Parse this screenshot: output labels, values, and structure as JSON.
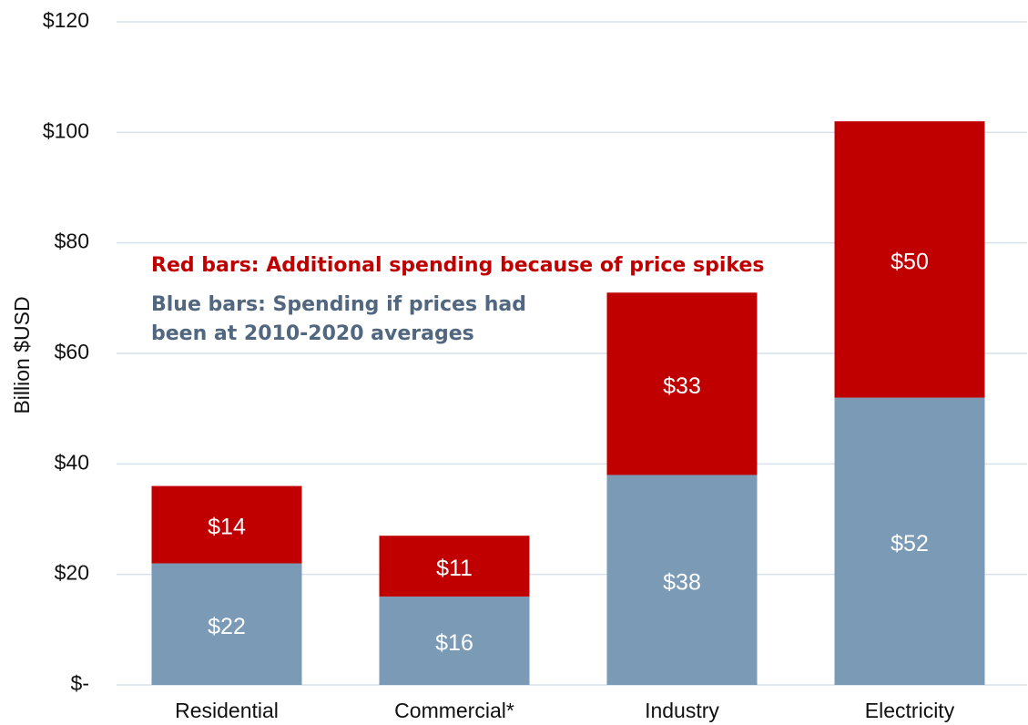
{
  "chart_data": {
    "type": "stacked_bar",
    "ylabel": "Billion $USD",
    "categories": [
      "Residential",
      "Commercial*",
      "Industry",
      "Electricity"
    ],
    "series": [
      {
        "color": "#7a9ab5",
        "values": [
          22,
          16,
          38,
          52
        ],
        "value_labels": [
          "$22",
          "$16",
          "$38",
          "$52"
        ]
      },
      {
        "color": "#c00000",
        "values": [
          14,
          11,
          33,
          50
        ],
        "value_labels": [
          "$14",
          "$11",
          "$33",
          "$50"
        ]
      }
    ],
    "annotations": [
      {
        "text": "Red bars: Additional spending because of price spikes",
        "color": "#c00000"
      },
      {
        "text": "Blue bars: Spending if prices had",
        "color": "#50677f"
      },
      {
        "text": "been at 2010-2020 averages",
        "color": "#50677f"
      }
    ],
    "ylim": [
      0,
      120
    ],
    "yticks": [
      {
        "value": 0,
        "label": "$-"
      },
      {
        "value": 20,
        "label": "$20"
      },
      {
        "value": 40,
        "label": "$40"
      },
      {
        "value": 60,
        "label": "$60"
      },
      {
        "value": 80,
        "label": "$80"
      },
      {
        "value": 100,
        "label": "$100"
      },
      {
        "value": 120,
        "label": "$120"
      }
    ],
    "grid": true
  }
}
